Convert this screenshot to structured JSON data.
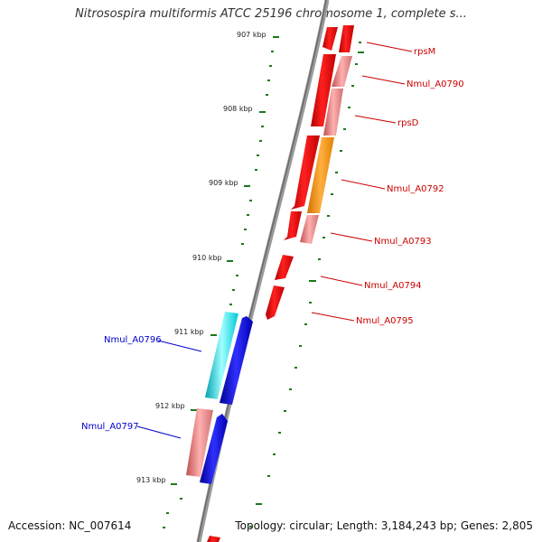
{
  "title": "Nitrosospira multiformis ATCC 25196 chromosome 1, complete s...",
  "accession_text": "Accession: NC_007614",
  "summary_text": "Topology: circular; Length: 3,184,243 bp; Genes: 2,805",
  "ticks": [
    {
      "label": "907 kbp"
    },
    {
      "label": "908 kbp"
    },
    {
      "label": "909 kbp"
    },
    {
      "label": "910 kbp"
    },
    {
      "label": "911 kbp"
    },
    {
      "label": "912 kbp"
    },
    {
      "label": "913 kbp"
    }
  ],
  "gene_labels": [
    {
      "text": "rpsM",
      "color": "#cc0000"
    },
    {
      "text": "Nmul_A0790",
      "color": "#cc0000"
    },
    {
      "text": "rpsD",
      "color": "#cc0000"
    },
    {
      "text": "Nmul_A0792",
      "color": "#cc0000"
    },
    {
      "text": "Nmul_A0793",
      "color": "#cc0000"
    },
    {
      "text": "Nmul_A0794",
      "color": "#cc0000"
    },
    {
      "text": "Nmul_A0795",
      "color": "#cc0000"
    },
    {
      "text": "Nmul_A0796",
      "color": "#0000cc"
    },
    {
      "text": "Nmul_A0797",
      "color": "#0000cc"
    }
  ],
  "colors": {
    "reverse_gene": "#ee0000",
    "reverse_gene_light": "#f08080",
    "forward_gene": "#0000dd",
    "forward_gene_light": "#00e5ee",
    "highlight_gene": "#ff9900",
    "backbone": "#888888",
    "tick": "#1a7a1a"
  }
}
